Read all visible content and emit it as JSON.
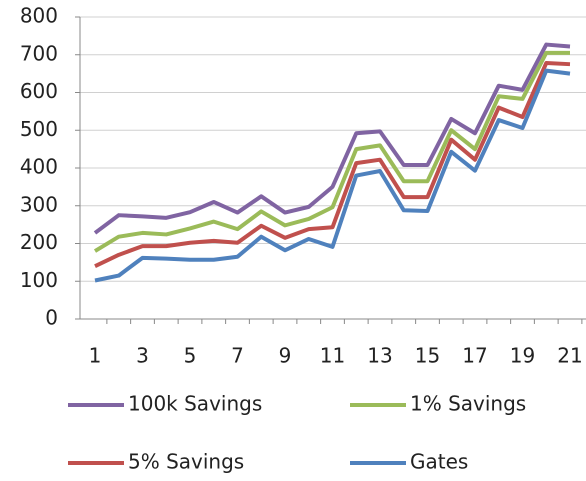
{
  "chart_data": {
    "type": "line",
    "categories": [
      "1",
      null,
      "3",
      null,
      "5",
      null,
      "7",
      null,
      "9",
      null,
      "11",
      null,
      "13",
      null,
      "15",
      null,
      "17",
      null,
      "19",
      null,
      "21"
    ],
    "series": [
      {
        "name": "100k Savings",
        "color": "#8064a2",
        "values": [
          228,
          275,
          272,
          268,
          283,
          310,
          282,
          325,
          282,
          297,
          350,
          492,
          497,
          408,
          408,
          530,
          492,
          618,
          607,
          727,
          722
        ]
      },
      {
        "name": "1% Savings",
        "color": "#9bbb59",
        "values": [
          180,
          218,
          228,
          224,
          240,
          258,
          238,
          285,
          248,
          265,
          296,
          450,
          460,
          365,
          365,
          500,
          450,
          590,
          583,
          705,
          705
        ]
      },
      {
        "name": "5% Savings",
        "color": "#c0504d",
        "values": [
          140,
          170,
          193,
          193,
          202,
          207,
          202,
          247,
          215,
          238,
          243,
          413,
          422,
          323,
          323,
          475,
          422,
          560,
          535,
          678,
          675
        ]
      },
      {
        "name": "Gates",
        "color": "#4f81bd",
        "values": [
          102,
          115,
          162,
          160,
          157,
          157,
          165,
          218,
          182,
          212,
          191,
          380,
          392,
          288,
          286,
          443,
          393,
          527,
          506,
          658,
          650
        ]
      }
    ],
    "ylim": [
      0,
      800
    ],
    "yticks": [
      0,
      100,
      200,
      300,
      400,
      500,
      600,
      700,
      800
    ],
    "grid": true,
    "legend": "bottom"
  }
}
